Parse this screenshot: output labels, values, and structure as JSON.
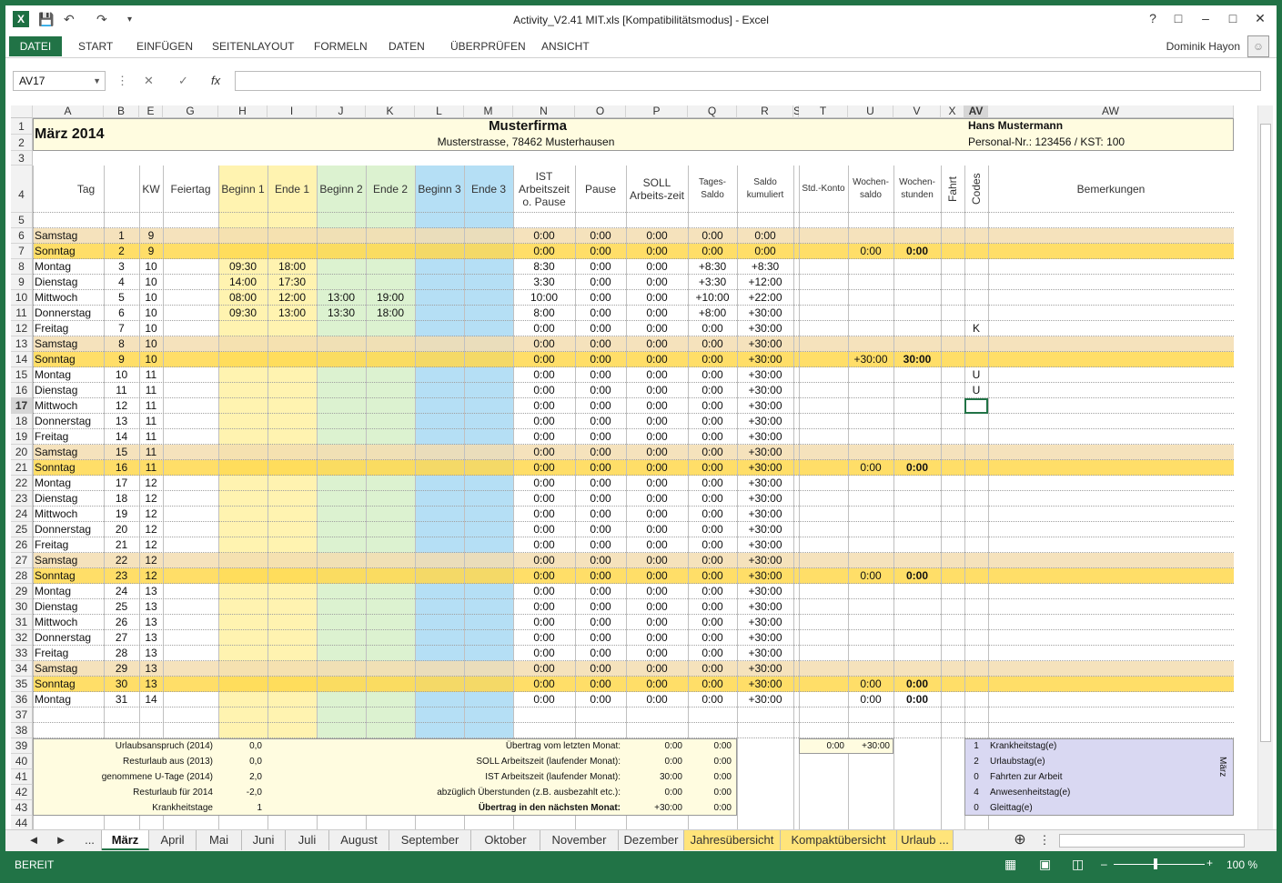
{
  "window": {
    "title": "Activity_V2.41 MIT.xls  [Kompatibilitätsmodus] - Excel",
    "help": "?",
    "restore": "□",
    "minimize": "–",
    "maximize": "□",
    "close": "✕"
  },
  "ribbon": {
    "file": "DATEI",
    "tabs": [
      "START",
      "EINFÜGEN",
      "SEITENLAYOUT",
      "FORMELN",
      "DATEN",
      "ÜBERPRÜFEN",
      "ANSICHT"
    ],
    "user": "Dominik Hayon"
  },
  "formula_bar": {
    "namebox": "AV17",
    "cancel": "✕",
    "enter": "✓",
    "fx": "fx",
    "value": ""
  },
  "columns": [
    "A",
    "B",
    "E",
    "G",
    "H",
    "I",
    "J",
    "K",
    "L",
    "M",
    "N",
    "O",
    "P",
    "Q",
    "R",
    "S",
    "T",
    "U",
    "V",
    "X",
    "AV",
    "AW"
  ],
  "header": {
    "month": "März 2014",
    "company": "Musterfirma",
    "address": "Musterstrasse, 78462 Musterhausen",
    "person": "Hans Mustermann",
    "persnr": "Personal-Nr.: 123456 / KST: 100"
  },
  "col_titles": [
    "Tag",
    "KW",
    "Feiertag",
    "Beginn 1",
    "Ende 1",
    "Beginn 2",
    "Ende 2",
    "Beginn 3",
    "Ende 3",
    "IST Arbeitszeit o. Pause",
    "Pause",
    "SOLL Arbeits-zeit",
    "Tages-Saldo",
    "Saldo kumuliert",
    "Std.-Konto",
    "Wochen-saldo",
    "Wochen-stunden",
    "Fahrt",
    "Codes",
    "Bemerkungen"
  ],
  "days": [
    {
      "r": 6,
      "tag": "Samstag",
      "d": "1",
      "kw": "9",
      "b1": "",
      "e1": "",
      "b2": "",
      "e2": "",
      "ist": "0:00",
      "pause": "0:00",
      "soll": "0:00",
      "saldo": "0:00",
      "kum": "0:00",
      "ws": "",
      "wh": "",
      "code": "",
      "type": "sa"
    },
    {
      "r": 7,
      "tag": "Sonntag",
      "d": "2",
      "kw": "9",
      "b1": "",
      "e1": "",
      "b2": "",
      "e2": "",
      "ist": "0:00",
      "pause": "0:00",
      "soll": "0:00",
      "saldo": "0:00",
      "kum": "0:00",
      "ws": "0:00",
      "wh": "0:00",
      "code": "",
      "type": "so"
    },
    {
      "r": 8,
      "tag": "Montag",
      "d": "3",
      "kw": "10",
      "b1": "09:30",
      "e1": "18:00",
      "b2": "",
      "e2": "",
      "ist": "8:30",
      "pause": "0:00",
      "soll": "0:00",
      "saldo": "+8:30",
      "kum": "+8:30",
      "ws": "",
      "wh": "",
      "code": "",
      "type": "w"
    },
    {
      "r": 9,
      "tag": "Dienstag",
      "d": "4",
      "kw": "10",
      "b1": "14:00",
      "e1": "17:30",
      "b2": "",
      "e2": "",
      "ist": "3:30",
      "pause": "0:00",
      "soll": "0:00",
      "saldo": "+3:30",
      "kum": "+12:00",
      "ws": "",
      "wh": "",
      "code": "",
      "type": "w"
    },
    {
      "r": 10,
      "tag": "Mittwoch",
      "d": "5",
      "kw": "10",
      "b1": "08:00",
      "e1": "12:00",
      "b2": "13:00",
      "e2": "19:00",
      "ist": "10:00",
      "pause": "0:00",
      "soll": "0:00",
      "saldo": "+10:00",
      "kum": "+22:00",
      "ws": "",
      "wh": "",
      "code": "",
      "type": "w"
    },
    {
      "r": 11,
      "tag": "Donnerstag",
      "d": "6",
      "kw": "10",
      "b1": "09:30",
      "e1": "13:00",
      "b2": "13:30",
      "e2": "18:00",
      "ist": "8:00",
      "pause": "0:00",
      "soll": "0:00",
      "saldo": "+8:00",
      "kum": "+30:00",
      "ws": "",
      "wh": "",
      "code": "",
      "type": "w"
    },
    {
      "r": 12,
      "tag": "Freitag",
      "d": "7",
      "kw": "10",
      "b1": "",
      "e1": "",
      "b2": "",
      "e2": "",
      "ist": "0:00",
      "pause": "0:00",
      "soll": "0:00",
      "saldo": "0:00",
      "kum": "+30:00",
      "ws": "",
      "wh": "",
      "code": "K",
      "type": "w"
    },
    {
      "r": 13,
      "tag": "Samstag",
      "d": "8",
      "kw": "10",
      "b1": "",
      "e1": "",
      "b2": "",
      "e2": "",
      "ist": "0:00",
      "pause": "0:00",
      "soll": "0:00",
      "saldo": "0:00",
      "kum": "+30:00",
      "ws": "",
      "wh": "",
      "code": "",
      "type": "sa"
    },
    {
      "r": 14,
      "tag": "Sonntag",
      "d": "9",
      "kw": "10",
      "b1": "",
      "e1": "",
      "b2": "",
      "e2": "",
      "ist": "0:00",
      "pause": "0:00",
      "soll": "0:00",
      "saldo": "0:00",
      "kum": "+30:00",
      "ws": "+30:00",
      "wh": "30:00",
      "code": "",
      "type": "so"
    },
    {
      "r": 15,
      "tag": "Montag",
      "d": "10",
      "kw": "11",
      "b1": "",
      "e1": "",
      "b2": "",
      "e2": "",
      "ist": "0:00",
      "pause": "0:00",
      "soll": "0:00",
      "saldo": "0:00",
      "kum": "+30:00",
      "ws": "",
      "wh": "",
      "code": "U",
      "type": "w"
    },
    {
      "r": 16,
      "tag": "Dienstag",
      "d": "11",
      "kw": "11",
      "b1": "",
      "e1": "",
      "b2": "",
      "e2": "",
      "ist": "0:00",
      "pause": "0:00",
      "soll": "0:00",
      "saldo": "0:00",
      "kum": "+30:00",
      "ws": "",
      "wh": "",
      "code": "U",
      "type": "w"
    },
    {
      "r": 17,
      "tag": "Mittwoch",
      "d": "12",
      "kw": "11",
      "b1": "",
      "e1": "",
      "b2": "",
      "e2": "",
      "ist": "0:00",
      "pause": "0:00",
      "soll": "0:00",
      "saldo": "0:00",
      "kum": "+30:00",
      "ws": "",
      "wh": "",
      "code": "",
      "type": "w"
    },
    {
      "r": 18,
      "tag": "Donnerstag",
      "d": "13",
      "kw": "11",
      "b1": "",
      "e1": "",
      "b2": "",
      "e2": "",
      "ist": "0:00",
      "pause": "0:00",
      "soll": "0:00",
      "saldo": "0:00",
      "kum": "+30:00",
      "ws": "",
      "wh": "",
      "code": "",
      "type": "w"
    },
    {
      "r": 19,
      "tag": "Freitag",
      "d": "14",
      "kw": "11",
      "b1": "",
      "e1": "",
      "b2": "",
      "e2": "",
      "ist": "0:00",
      "pause": "0:00",
      "soll": "0:00",
      "saldo": "0:00",
      "kum": "+30:00",
      "ws": "",
      "wh": "",
      "code": "",
      "type": "w"
    },
    {
      "r": 20,
      "tag": "Samstag",
      "d": "15",
      "kw": "11",
      "b1": "",
      "e1": "",
      "b2": "",
      "e2": "",
      "ist": "0:00",
      "pause": "0:00",
      "soll": "0:00",
      "saldo": "0:00",
      "kum": "+30:00",
      "ws": "",
      "wh": "",
      "code": "",
      "type": "sa"
    },
    {
      "r": 21,
      "tag": "Sonntag",
      "d": "16",
      "kw": "11",
      "b1": "",
      "e1": "",
      "b2": "",
      "e2": "",
      "ist": "0:00",
      "pause": "0:00",
      "soll": "0:00",
      "saldo": "0:00",
      "kum": "+30:00",
      "ws": "0:00",
      "wh": "0:00",
      "code": "",
      "type": "so"
    },
    {
      "r": 22,
      "tag": "Montag",
      "d": "17",
      "kw": "12",
      "b1": "",
      "e1": "",
      "b2": "",
      "e2": "",
      "ist": "0:00",
      "pause": "0:00",
      "soll": "0:00",
      "saldo": "0:00",
      "kum": "+30:00",
      "ws": "",
      "wh": "",
      "code": "",
      "type": "w"
    },
    {
      "r": 23,
      "tag": "Dienstag",
      "d": "18",
      "kw": "12",
      "b1": "",
      "e1": "",
      "b2": "",
      "e2": "",
      "ist": "0:00",
      "pause": "0:00",
      "soll": "0:00",
      "saldo": "0:00",
      "kum": "+30:00",
      "ws": "",
      "wh": "",
      "code": "",
      "type": "w"
    },
    {
      "r": 24,
      "tag": "Mittwoch",
      "d": "19",
      "kw": "12",
      "b1": "",
      "e1": "",
      "b2": "",
      "e2": "",
      "ist": "0:00",
      "pause": "0:00",
      "soll": "0:00",
      "saldo": "0:00",
      "kum": "+30:00",
      "ws": "",
      "wh": "",
      "code": "",
      "type": "w"
    },
    {
      "r": 25,
      "tag": "Donnerstag",
      "d": "20",
      "kw": "12",
      "b1": "",
      "e1": "",
      "b2": "",
      "e2": "",
      "ist": "0:00",
      "pause": "0:00",
      "soll": "0:00",
      "saldo": "0:00",
      "kum": "+30:00",
      "ws": "",
      "wh": "",
      "code": "",
      "type": "w"
    },
    {
      "r": 26,
      "tag": "Freitag",
      "d": "21",
      "kw": "12",
      "b1": "",
      "e1": "",
      "b2": "",
      "e2": "",
      "ist": "0:00",
      "pause": "0:00",
      "soll": "0:00",
      "saldo": "0:00",
      "kum": "+30:00",
      "ws": "",
      "wh": "",
      "code": "",
      "type": "w"
    },
    {
      "r": 27,
      "tag": "Samstag",
      "d": "22",
      "kw": "12",
      "b1": "",
      "e1": "",
      "b2": "",
      "e2": "",
      "ist": "0:00",
      "pause": "0:00",
      "soll": "0:00",
      "saldo": "0:00",
      "kum": "+30:00",
      "ws": "",
      "wh": "",
      "code": "",
      "type": "sa"
    },
    {
      "r": 28,
      "tag": "Sonntag",
      "d": "23",
      "kw": "12",
      "b1": "",
      "e1": "",
      "b2": "",
      "e2": "",
      "ist": "0:00",
      "pause": "0:00",
      "soll": "0:00",
      "saldo": "0:00",
      "kum": "+30:00",
      "ws": "0:00",
      "wh": "0:00",
      "code": "",
      "type": "so"
    },
    {
      "r": 29,
      "tag": "Montag",
      "d": "24",
      "kw": "13",
      "b1": "",
      "e1": "",
      "b2": "",
      "e2": "",
      "ist": "0:00",
      "pause": "0:00",
      "soll": "0:00",
      "saldo": "0:00",
      "kum": "+30:00",
      "ws": "",
      "wh": "",
      "code": "",
      "type": "w"
    },
    {
      "r": 30,
      "tag": "Dienstag",
      "d": "25",
      "kw": "13",
      "b1": "",
      "e1": "",
      "b2": "",
      "e2": "",
      "ist": "0:00",
      "pause": "0:00",
      "soll": "0:00",
      "saldo": "0:00",
      "kum": "+30:00",
      "ws": "",
      "wh": "",
      "code": "",
      "type": "w"
    },
    {
      "r": 31,
      "tag": "Mittwoch",
      "d": "26",
      "kw": "13",
      "b1": "",
      "e1": "",
      "b2": "",
      "e2": "",
      "ist": "0:00",
      "pause": "0:00",
      "soll": "0:00",
      "saldo": "0:00",
      "kum": "+30:00",
      "ws": "",
      "wh": "",
      "code": "",
      "type": "w"
    },
    {
      "r": 32,
      "tag": "Donnerstag",
      "d": "27",
      "kw": "13",
      "b1": "",
      "e1": "",
      "b2": "",
      "e2": "",
      "ist": "0:00",
      "pause": "0:00",
      "soll": "0:00",
      "saldo": "0:00",
      "kum": "+30:00",
      "ws": "",
      "wh": "",
      "code": "",
      "type": "w"
    },
    {
      "r": 33,
      "tag": "Freitag",
      "d": "28",
      "kw": "13",
      "b1": "",
      "e1": "",
      "b2": "",
      "e2": "",
      "ist": "0:00",
      "pause": "0:00",
      "soll": "0:00",
      "saldo": "0:00",
      "kum": "+30:00",
      "ws": "",
      "wh": "",
      "code": "",
      "type": "w"
    },
    {
      "r": 34,
      "tag": "Samstag",
      "d": "29",
      "kw": "13",
      "b1": "",
      "e1": "",
      "b2": "",
      "e2": "",
      "ist": "0:00",
      "pause": "0:00",
      "soll": "0:00",
      "saldo": "0:00",
      "kum": "+30:00",
      "ws": "",
      "wh": "",
      "code": "",
      "type": "sa"
    },
    {
      "r": 35,
      "tag": "Sonntag",
      "d": "30",
      "kw": "13",
      "b1": "",
      "e1": "",
      "b2": "",
      "e2": "",
      "ist": "0:00",
      "pause": "0:00",
      "soll": "0:00",
      "saldo": "0:00",
      "kum": "+30:00",
      "ws": "0:00",
      "wh": "0:00",
      "code": "",
      "type": "so"
    },
    {
      "r": 36,
      "tag": "Montag",
      "d": "31",
      "kw": "14",
      "b1": "",
      "e1": "",
      "b2": "",
      "e2": "",
      "ist": "0:00",
      "pause": "0:00",
      "soll": "0:00",
      "saldo": "0:00",
      "kum": "+30:00",
      "ws": "0:00",
      "wh": "0:00",
      "code": "",
      "type": "w"
    }
  ],
  "summary_left": [
    {
      "label": "Urlaubsanspruch (2014)",
      "val": "0,0"
    },
    {
      "label": "Resturlaub aus (2013)",
      "val": "0,0"
    },
    {
      "label": "genommene U-Tage (2014)",
      "val": "2,0"
    },
    {
      "label": "Resturlaub für 2014",
      "val": "-2,0"
    },
    {
      "label": "Krankheitstage",
      "val": "1"
    }
  ],
  "summary_mid": [
    {
      "label": "Übertrag vom letzten Monat:",
      "v1": "0:00",
      "v2": "0:00"
    },
    {
      "label": "SOLL Arbeitszeit (laufender Monat):",
      "v1": "0:00",
      "v2": "0:00"
    },
    {
      "label": "IST Arbeitszeit (laufender Monat):",
      "v1": "30:00",
      "v2": "0:00"
    },
    {
      "label": "abzüglich Überstunden (z.B. ausbezahlt etc.):",
      "v1": "0:00",
      "v2": "0:00"
    },
    {
      "label": "Übertrag in den nächsten Monat:",
      "v1": "+30:00",
      "v2": "0:00"
    }
  ],
  "summary_konto": {
    "t": "0:00",
    "u": "+30:00"
  },
  "codes_legend": [
    {
      "n": "1",
      "label": "Krankheitstag(e)"
    },
    {
      "n": "2",
      "label": "Urlaubstag(e)"
    },
    {
      "n": "0",
      "label": "Fahrten zur Arbeit"
    },
    {
      "n": "4",
      "label": "Anwesenheitstag(e)"
    },
    {
      "n": "0",
      "label": "Gleittag(e)"
    }
  ],
  "codes_month": "März",
  "sheet_tabs": [
    "März",
    "April",
    "Mai",
    "Juni",
    "Juli",
    "August",
    "September",
    "Oktober",
    "November",
    "Dezember",
    "Jahresübersicht",
    "Kompaktübersicht",
    "Urlaub ..."
  ],
  "tab_nav": [
    "◄",
    "►",
    "..."
  ],
  "status": {
    "mode": "BEREIT",
    "zoom": "100 %"
  },
  "colors": {
    "green": "#217346",
    "yellow": "#fff3b0",
    "green_col": "#dcf2d0",
    "blue_col": "#b5dff5",
    "sat": "#f3ddb0",
    "sun": "#ffd84d",
    "header": "#fffce0"
  }
}
